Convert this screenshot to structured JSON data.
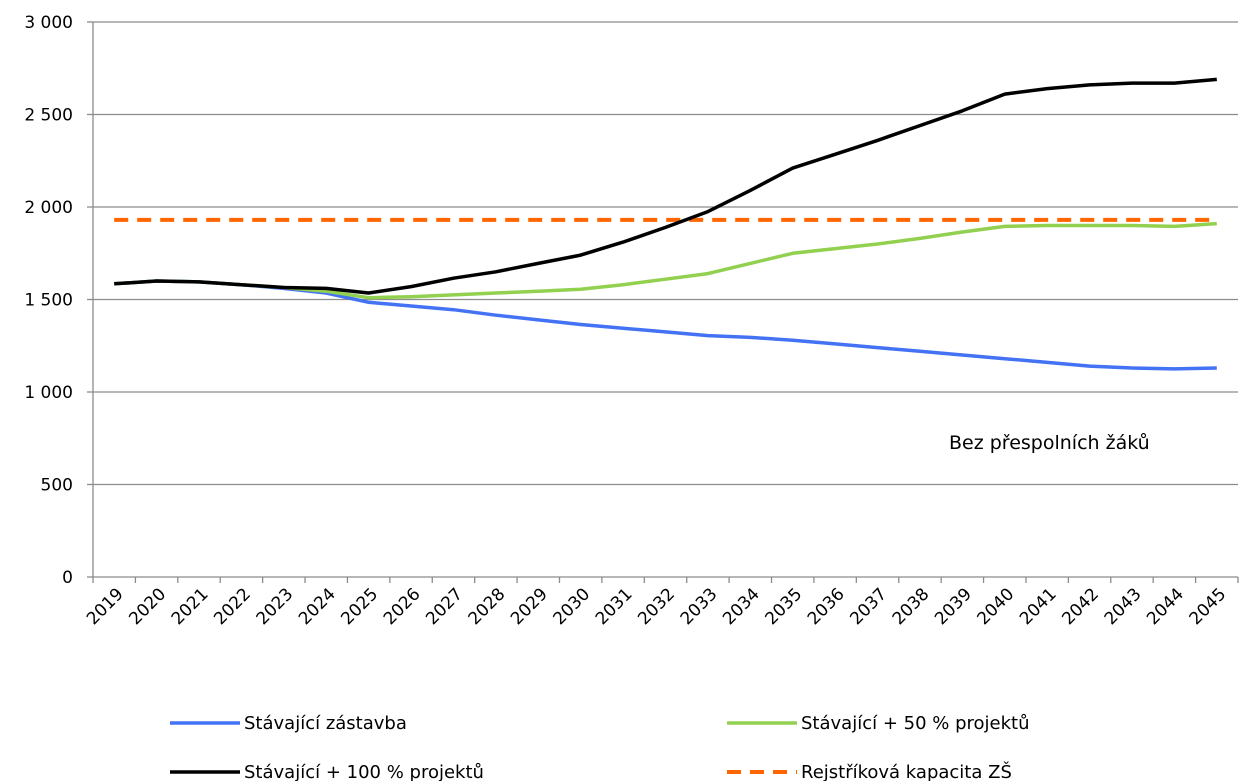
{
  "chart_data": {
    "type": "line",
    "x": [
      "2019",
      "2020",
      "2021",
      "2022",
      "2023",
      "2024",
      "2025",
      "2026",
      "2027",
      "2028",
      "2029",
      "2030",
      "2031",
      "2032",
      "2033",
      "2034",
      "2035",
      "2036",
      "2037",
      "2038",
      "2039",
      "2040",
      "2041",
      "2042",
      "2043",
      "2044",
      "2045"
    ],
    "y_ticks": [
      "0",
      "500",
      "1 000",
      "1 500",
      "2 000",
      "2 500",
      "3 000"
    ],
    "ylim": [
      0,
      3000
    ],
    "grid": "horizontal",
    "legend": "bottom",
    "annotation": "Bez přespolních žáků",
    "series": [
      {
        "name": "Stávající zástavba",
        "color": "#4472f4",
        "style": "solid",
        "values": [
          1585,
          1600,
          1595,
          1580,
          1560,
          1535,
          1485,
          1465,
          1445,
          1415,
          1390,
          1365,
          1345,
          1325,
          1305,
          1295,
          1280,
          1260,
          1240,
          1220,
          1200,
          1180,
          1160,
          1140,
          1130,
          1125,
          1130
        ]
      },
      {
        "name": "Stávající + 50 % projektů",
        "color": "#92d050",
        "style": "solid",
        "values": [
          1585,
          1600,
          1595,
          1580,
          1565,
          1545,
          1510,
          1515,
          1525,
          1535,
          1545,
          1555,
          1580,
          1610,
          1640,
          1695,
          1750,
          1775,
          1800,
          1830,
          1865,
          1895,
          1900,
          1900,
          1900,
          1895,
          1910
        ]
      },
      {
        "name": "Stávající + 100 % projektů",
        "color": "#000000",
        "style": "solid",
        "values": [
          1585,
          1600,
          1595,
          1580,
          1565,
          1560,
          1535,
          1570,
          1615,
          1650,
          1695,
          1740,
          1810,
          1890,
          1975,
          2090,
          2210,
          2285,
          2360,
          2440,
          2520,
          2610,
          2640,
          2660,
          2670,
          2670,
          2690
        ]
      },
      {
        "name": "Rejstříková kapacita ZŠ",
        "color": "#ff6600",
        "style": "dashed",
        "values": [
          1930,
          1930,
          1930,
          1930,
          1930,
          1930,
          1930,
          1930,
          1930,
          1930,
          1930,
          1930,
          1930,
          1930,
          1930,
          1930,
          1930,
          1930,
          1930,
          1930,
          1930,
          1930,
          1930,
          1930,
          1930,
          1930,
          1930
        ]
      }
    ]
  }
}
